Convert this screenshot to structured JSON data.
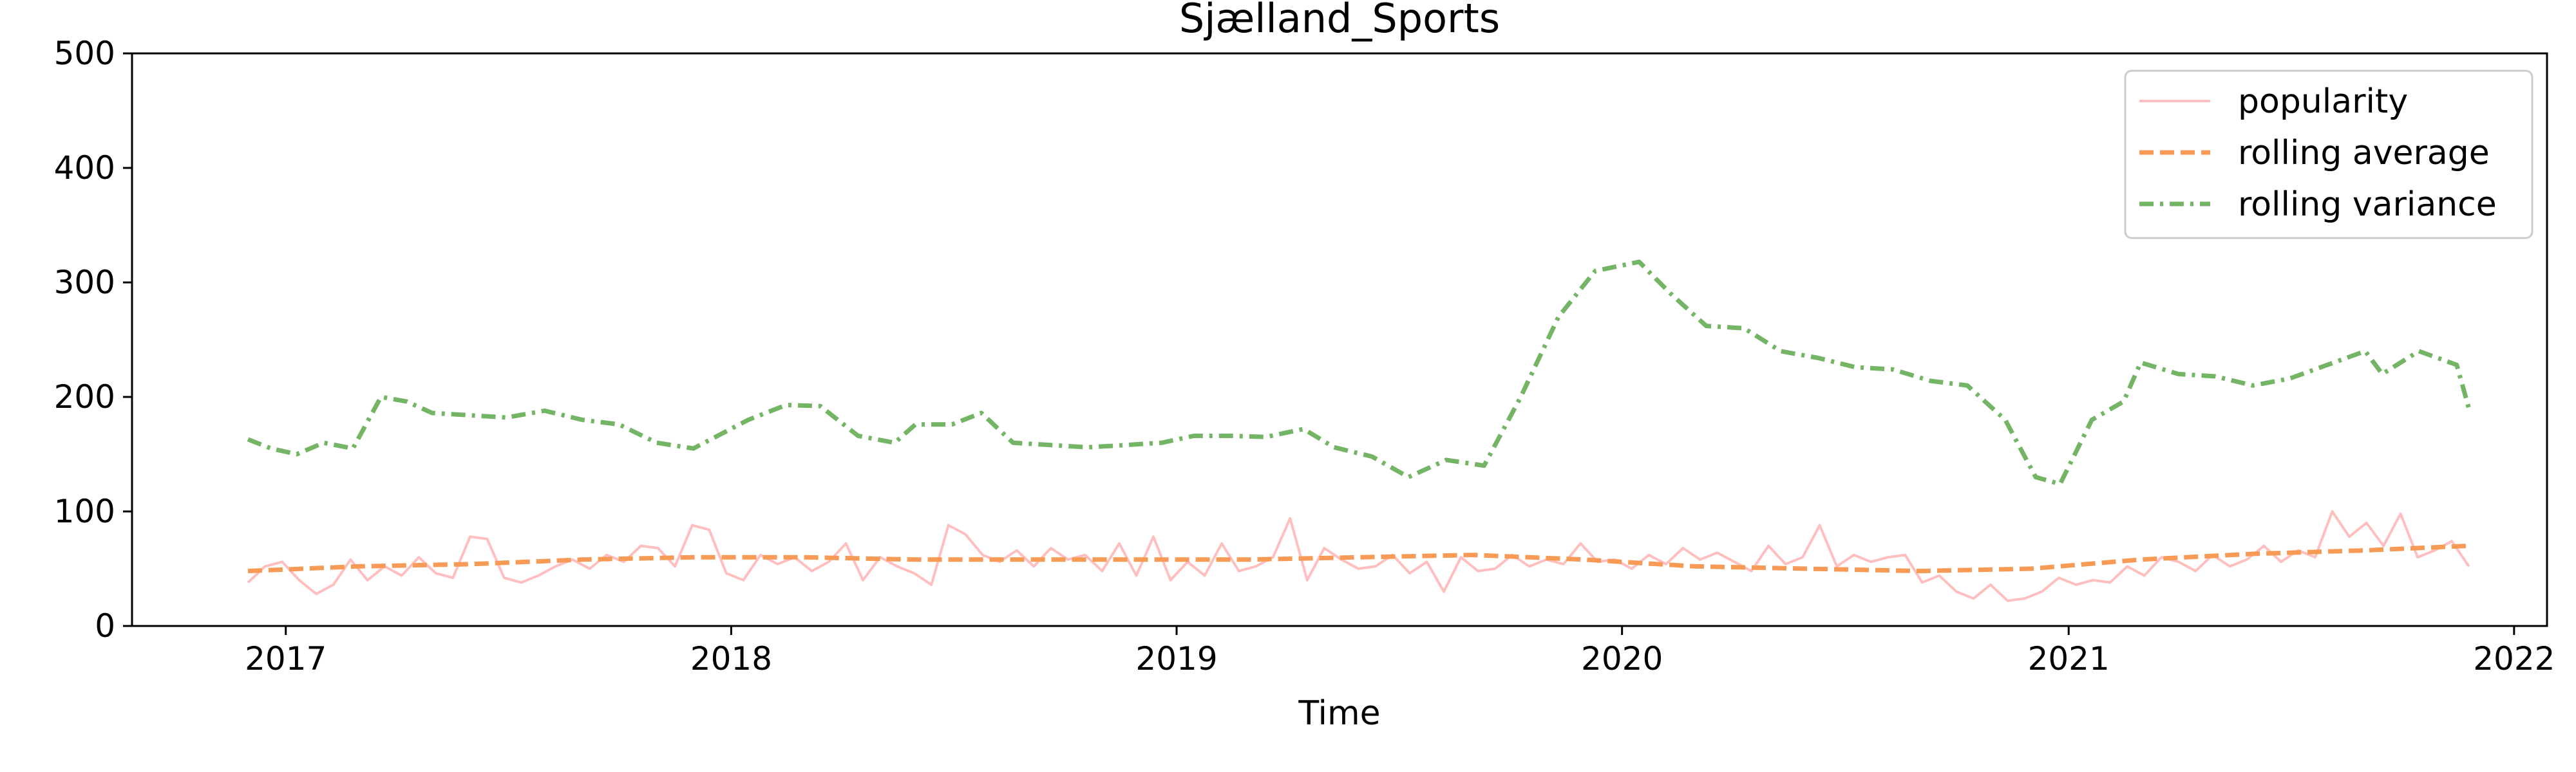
{
  "chart_data": {
    "type": "line",
    "title": "Sjælland_Sports",
    "xlabel": "Time",
    "ylabel": "",
    "xlim": [
      "2016-08-28",
      "2022-01-28"
    ],
    "ylim": [
      0,
      500
    ],
    "x_ticks": [
      "2017",
      "2018",
      "2019",
      "2020",
      "2021",
      "2022"
    ],
    "y_ticks": [
      "0",
      "100",
      "200",
      "300",
      "400",
      "500"
    ],
    "grid": false,
    "legend_position": "top-right",
    "series": [
      {
        "name": "popularity",
        "color": "#ffbfbf",
        "line_style": "solid",
        "points": [
          [
            "2016-12-01",
            38
          ],
          [
            "2016-12-15",
            52
          ],
          [
            "2016-12-29",
            56
          ],
          [
            "2017-01-12",
            40
          ],
          [
            "2017-01-26",
            28
          ],
          [
            "2017-02-09",
            36
          ],
          [
            "2017-02-23",
            58
          ],
          [
            "2017-03-09",
            40
          ],
          [
            "2017-03-23",
            52
          ],
          [
            "2017-04-06",
            44
          ],
          [
            "2017-04-20",
            60
          ],
          [
            "2017-05-04",
            46
          ],
          [
            "2017-05-18",
            42
          ],
          [
            "2017-06-01",
            78
          ],
          [
            "2017-06-15",
            76
          ],
          [
            "2017-06-29",
            42
          ],
          [
            "2017-07-13",
            38
          ],
          [
            "2017-07-27",
            44
          ],
          [
            "2017-08-10",
            52
          ],
          [
            "2017-08-24",
            58
          ],
          [
            "2017-09-07",
            50
          ],
          [
            "2017-09-21",
            62
          ],
          [
            "2017-10-05",
            56
          ],
          [
            "2017-10-19",
            70
          ],
          [
            "2017-11-02",
            68
          ],
          [
            "2017-11-16",
            52
          ],
          [
            "2017-11-30",
            88
          ],
          [
            "2017-12-14",
            84
          ],
          [
            "2017-12-28",
            46
          ],
          [
            "2018-01-11",
            40
          ],
          [
            "2018-01-25",
            62
          ],
          [
            "2018-02-08",
            54
          ],
          [
            "2018-02-22",
            60
          ],
          [
            "2018-03-08",
            48
          ],
          [
            "2018-03-22",
            56
          ],
          [
            "2018-04-05",
            72
          ],
          [
            "2018-04-19",
            40
          ],
          [
            "2018-05-03",
            60
          ],
          [
            "2018-05-17",
            52
          ],
          [
            "2018-05-31",
            46
          ],
          [
            "2018-06-14",
            36
          ],
          [
            "2018-06-28",
            88
          ],
          [
            "2018-07-12",
            80
          ],
          [
            "2018-07-26",
            62
          ],
          [
            "2018-08-09",
            56
          ],
          [
            "2018-08-23",
            66
          ],
          [
            "2018-09-06",
            52
          ],
          [
            "2018-09-20",
            68
          ],
          [
            "2018-10-04",
            58
          ],
          [
            "2018-10-18",
            62
          ],
          [
            "2018-11-01",
            48
          ],
          [
            "2018-11-15",
            72
          ],
          [
            "2018-11-29",
            44
          ],
          [
            "2018-12-13",
            78
          ],
          [
            "2018-12-27",
            40
          ],
          [
            "2019-01-10",
            56
          ],
          [
            "2019-01-24",
            44
          ],
          [
            "2019-02-07",
            72
          ],
          [
            "2019-02-21",
            48
          ],
          [
            "2019-03-07",
            52
          ],
          [
            "2019-03-21",
            60
          ],
          [
            "2019-04-04",
            94
          ],
          [
            "2019-04-18",
            40
          ],
          [
            "2019-05-02",
            68
          ],
          [
            "2019-05-16",
            58
          ],
          [
            "2019-05-30",
            50
          ],
          [
            "2019-06-13",
            52
          ],
          [
            "2019-06-27",
            62
          ],
          [
            "2019-07-11",
            46
          ],
          [
            "2019-07-25",
            56
          ],
          [
            "2019-08-08",
            30
          ],
          [
            "2019-08-22",
            60
          ],
          [
            "2019-09-05",
            48
          ],
          [
            "2019-09-19",
            50
          ],
          [
            "2019-10-03",
            62
          ],
          [
            "2019-10-17",
            52
          ],
          [
            "2019-10-31",
            58
          ],
          [
            "2019-11-14",
            54
          ],
          [
            "2019-11-28",
            72
          ],
          [
            "2019-12-12",
            56
          ],
          [
            "2019-12-26",
            58
          ],
          [
            "2020-01-09",
            50
          ],
          [
            "2020-01-23",
            62
          ],
          [
            "2020-02-06",
            54
          ],
          [
            "2020-02-20",
            68
          ],
          [
            "2020-03-05",
            58
          ],
          [
            "2020-03-19",
            64
          ],
          [
            "2020-04-02",
            56
          ],
          [
            "2020-04-16",
            48
          ],
          [
            "2020-04-30",
            70
          ],
          [
            "2020-05-14",
            54
          ],
          [
            "2020-05-28",
            60
          ],
          [
            "2020-06-11",
            88
          ],
          [
            "2020-06-25",
            52
          ],
          [
            "2020-07-09",
            62
          ],
          [
            "2020-07-23",
            56
          ],
          [
            "2020-08-06",
            60
          ],
          [
            "2020-08-20",
            62
          ],
          [
            "2020-09-03",
            38
          ],
          [
            "2020-09-17",
            44
          ],
          [
            "2020-10-01",
            30
          ],
          [
            "2020-10-15",
            24
          ],
          [
            "2020-10-29",
            36
          ],
          [
            "2020-11-12",
            22
          ],
          [
            "2020-11-26",
            24
          ],
          [
            "2020-12-10",
            30
          ],
          [
            "2020-12-24",
            42
          ],
          [
            "2021-01-07",
            36
          ],
          [
            "2021-01-21",
            40
          ],
          [
            "2021-02-04",
            38
          ],
          [
            "2021-02-18",
            52
          ],
          [
            "2021-03-04",
            44
          ],
          [
            "2021-03-18",
            60
          ],
          [
            "2021-04-01",
            56
          ],
          [
            "2021-04-15",
            48
          ],
          [
            "2021-04-29",
            62
          ],
          [
            "2021-05-13",
            52
          ],
          [
            "2021-05-27",
            58
          ],
          [
            "2021-06-10",
            70
          ],
          [
            "2021-06-24",
            56
          ],
          [
            "2021-07-08",
            66
          ],
          [
            "2021-07-22",
            60
          ],
          [
            "2021-08-05",
            100
          ],
          [
            "2021-08-19",
            78
          ],
          [
            "2021-09-02",
            90
          ],
          [
            "2021-09-16",
            70
          ],
          [
            "2021-09-30",
            98
          ],
          [
            "2021-10-14",
            60
          ],
          [
            "2021-10-28",
            66
          ],
          [
            "2021-11-11",
            74
          ],
          [
            "2021-11-25",
            52
          ]
        ]
      },
      {
        "name": "rolling average",
        "color": "#f79a55",
        "line_style": "dashed",
        "points": [
          [
            "2016-12-01",
            48
          ],
          [
            "2017-03-01",
            52
          ],
          [
            "2017-06-01",
            54
          ],
          [
            "2017-09-01",
            58
          ],
          [
            "2017-12-01",
            60
          ],
          [
            "2018-03-01",
            60
          ],
          [
            "2018-06-01",
            58
          ],
          [
            "2018-09-01",
            58
          ],
          [
            "2018-12-01",
            58
          ],
          [
            "2019-03-01",
            58
          ],
          [
            "2019-06-01",
            60
          ],
          [
            "2019-09-01",
            62
          ],
          [
            "2019-12-01",
            58
          ],
          [
            "2020-03-01",
            52
          ],
          [
            "2020-06-01",
            50
          ],
          [
            "2020-09-01",
            48
          ],
          [
            "2020-12-01",
            50
          ],
          [
            "2021-03-01",
            58
          ],
          [
            "2021-06-01",
            63
          ],
          [
            "2021-09-01",
            66
          ],
          [
            "2021-11-25",
            70
          ]
        ]
      },
      {
        "name": "rolling variance",
        "color": "#73b565",
        "line_style": "dashdot",
        "points": [
          [
            "2016-12-01",
            163
          ],
          [
            "2016-12-20",
            155
          ],
          [
            "2017-01-10",
            150
          ],
          [
            "2017-02-01",
            160
          ],
          [
            "2017-02-25",
            155
          ],
          [
            "2017-03-20",
            200
          ],
          [
            "2017-04-10",
            196
          ],
          [
            "2017-05-01",
            186
          ],
          [
            "2017-06-01",
            184
          ],
          [
            "2017-07-01",
            182
          ],
          [
            "2017-08-01",
            188
          ],
          [
            "2017-09-01",
            180
          ],
          [
            "2017-10-01",
            176
          ],
          [
            "2017-11-01",
            160
          ],
          [
            "2017-12-01",
            155
          ],
          [
            "2018-01-15",
            180
          ],
          [
            "2018-02-15",
            193
          ],
          [
            "2018-03-15",
            192
          ],
          [
            "2018-04-15",
            166
          ],
          [
            "2018-05-15",
            160
          ],
          [
            "2018-06-01",
            176
          ],
          [
            "2018-07-01",
            176
          ],
          [
            "2018-07-25",
            186
          ],
          [
            "2018-08-20",
            160
          ],
          [
            "2018-09-20",
            158
          ],
          [
            "2018-10-20",
            156
          ],
          [
            "2018-11-20",
            158
          ],
          [
            "2018-12-20",
            160
          ],
          [
            "2019-01-15",
            166
          ],
          [
            "2019-02-15",
            166
          ],
          [
            "2019-03-15",
            165
          ],
          [
            "2019-04-15",
            172
          ],
          [
            "2019-05-10",
            156
          ],
          [
            "2019-06-10",
            148
          ],
          [
            "2019-07-10",
            130
          ],
          [
            "2019-08-10",
            145
          ],
          [
            "2019-09-10",
            140
          ],
          [
            "2019-10-10",
            200
          ],
          [
            "2019-11-10",
            270
          ],
          [
            "2019-12-10",
            310
          ],
          [
            "2020-01-15",
            318
          ],
          [
            "2020-02-10",
            290
          ],
          [
            "2020-03-10",
            262
          ],
          [
            "2020-04-10",
            260
          ],
          [
            "2020-05-10",
            240
          ],
          [
            "2020-06-10",
            234
          ],
          [
            "2020-07-10",
            226
          ],
          [
            "2020-08-10",
            224
          ],
          [
            "2020-09-10",
            214
          ],
          [
            "2020-10-10",
            210
          ],
          [
            "2020-11-10",
            180
          ],
          [
            "2020-12-05",
            130
          ],
          [
            "2020-12-25",
            124
          ],
          [
            "2021-01-20",
            180
          ],
          [
            "2021-02-15",
            196
          ],
          [
            "2021-03-01",
            230
          ],
          [
            "2021-04-01",
            220
          ],
          [
            "2021-05-01",
            218
          ],
          [
            "2021-06-01",
            210
          ],
          [
            "2021-07-01",
            216
          ],
          [
            "2021-08-01",
            228
          ],
          [
            "2021-09-01",
            240
          ],
          [
            "2021-09-15",
            220
          ],
          [
            "2021-10-15",
            240
          ],
          [
            "2021-11-15",
            228
          ],
          [
            "2021-11-25",
            190
          ]
        ]
      }
    ]
  }
}
